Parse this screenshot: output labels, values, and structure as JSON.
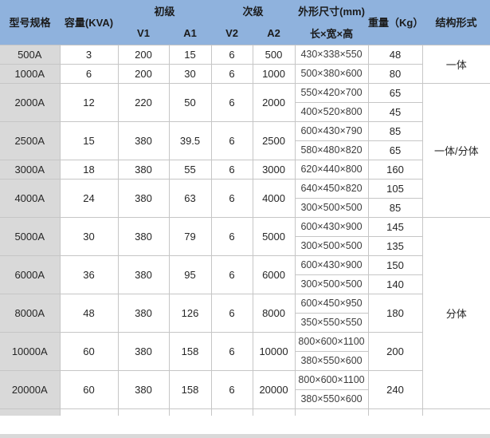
{
  "header": {
    "model": "型号规格",
    "capacity": "容量(KVA)",
    "primary": "初级",
    "secondary": "次级",
    "v1": "V1",
    "a1": "A1",
    "v2": "V2",
    "a2": "A2",
    "dims_title": "外形尺寸(mm)",
    "dims_sub": "长×宽×高",
    "weight": "重量（Kg）",
    "structure": "结构形式"
  },
  "table": {
    "groups": [
      {
        "model": "500A",
        "kva": "3",
        "v1": "200",
        "a1": "15",
        "v2": "6",
        "a2": "500",
        "dims": [
          "430×338×550"
        ],
        "weights": [
          "48"
        ]
      },
      {
        "model": "1000A",
        "kva": "6",
        "v1": "200",
        "a1": "30",
        "v2": "6",
        "a2": "1000",
        "dims": [
          "500×380×600"
        ],
        "weights": [
          "80"
        ]
      },
      {
        "model": "2000A",
        "kva": "12",
        "v1": "220",
        "a1": "50",
        "v2": "6",
        "a2": "2000",
        "dims": [
          "550×420×700",
          "400×520×800"
        ],
        "weights": [
          "65",
          "45"
        ]
      },
      {
        "model": "2500A",
        "kva": "15",
        "v1": "380",
        "a1": "39.5",
        "v2": "6",
        "a2": "2500",
        "dims": [
          "600×430×790",
          "580×480×820"
        ],
        "weights": [
          "85",
          "65"
        ]
      },
      {
        "model": "3000A",
        "kva": "18",
        "v1": "380",
        "a1": "55",
        "v2": "6",
        "a2": "3000",
        "dims": [
          "620×440×800"
        ],
        "weights": [
          "160"
        ]
      },
      {
        "model": "4000A",
        "kva": "24",
        "v1": "380",
        "a1": "63",
        "v2": "6",
        "a2": "4000",
        "dims": [
          "640×450×820",
          "300×500×500"
        ],
        "weights": [
          "105",
          "85"
        ]
      },
      {
        "model": "5000A",
        "kva": "30",
        "v1": "380",
        "a1": "79",
        "v2": "6",
        "a2": "5000",
        "dims": [
          "600×430×900",
          "300×500×500"
        ],
        "weights": [
          "145",
          "135"
        ]
      },
      {
        "model": "6000A",
        "kva": "36",
        "v1": "380",
        "a1": "95",
        "v2": "6",
        "a2": "6000",
        "dims": [
          "600×430×900",
          "300×500×500"
        ],
        "weights": [
          "150",
          "140"
        ]
      },
      {
        "model": "8000A",
        "kva": "48",
        "v1": "380",
        "a1": "126",
        "v2": "6",
        "a2": "8000",
        "dims": [
          "600×450×950",
          "350×550×550"
        ],
        "weights": [
          "180"
        ]
      },
      {
        "model": "10000A",
        "kva": "60",
        "v1": "380",
        "a1": "158",
        "v2": "6",
        "a2": "10000",
        "dims": [
          "800×600×1100",
          "380×550×600"
        ],
        "weights": [
          "200"
        ]
      },
      {
        "model": "20000A",
        "kva": "60",
        "v1": "380",
        "a1": "158",
        "v2": "6",
        "a2": "20000",
        "dims": [
          "800×600×1100",
          "380×550×600"
        ],
        "weights": [
          "240"
        ]
      }
    ],
    "structure_groups": [
      {
        "label": "一体",
        "models": [
          "500A",
          "1000A"
        ]
      },
      {
        "label": "一体/分体",
        "models": [
          "2000A",
          "2500A",
          "3000A",
          "4000A"
        ]
      },
      {
        "label": "分体",
        "models": [
          "5000A",
          "6000A",
          "8000A",
          "10000A",
          "20000A"
        ]
      }
    ]
  },
  "colors": {
    "header_bg": "#8FB2DD",
    "row_header_bg": "#D9D9D9",
    "border": "#C6C6C6",
    "text": "#222222"
  }
}
